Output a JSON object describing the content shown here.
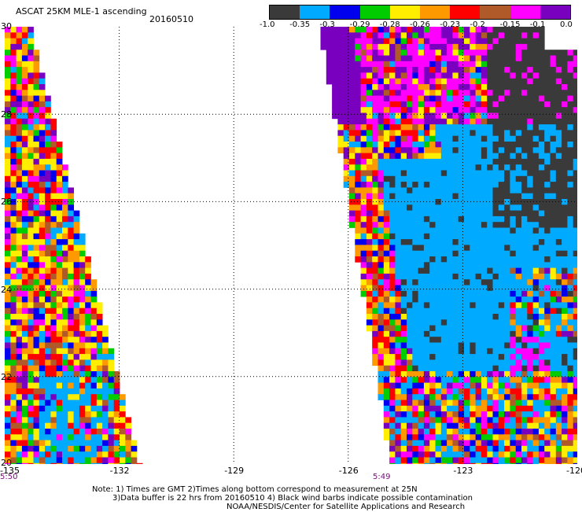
{
  "header": {
    "title": "ASCAT 25KM MLE-1 ascending",
    "date": "20160510"
  },
  "colorbar": {
    "colors": [
      "#3a3a3a",
      "#00aaff",
      "#0000ee",
      "#00cc00",
      "#ffee00",
      "#ff9900",
      "#ff0000",
      "#b05a2a",
      "#ff00ff",
      "#7a00c0"
    ],
    "labels": [
      "-1.0",
      "-0.35",
      "-0.3",
      "-0.29",
      "-0.28",
      "-0.26",
      "-0.23",
      "-0.2",
      "-0.15",
      "-0.1",
      "0.0"
    ]
  },
  "map": {
    "lon_ticks": [
      "-135",
      "-132",
      "-129",
      "-126",
      "-123",
      "-120"
    ],
    "lat_ticks": [
      "30",
      "28",
      "26",
      "24",
      "22",
      "20"
    ],
    "lon_range": [
      -135,
      -120
    ],
    "lat_range": [
      20,
      30
    ],
    "grid": true
  },
  "pass_times": {
    "west": "5:50",
    "east": "5:49"
  },
  "footer": {
    "line1": "Note: 1) Times are GMT 2)Times along bottom correspond to measurement at 25N",
    "line2": "3)Data buffer is 22 hrs from 20160510 4) Black wind barbs indicate possible contamination",
    "line3": "NOAA/NESDIS/Center for Satellite Applications and Research"
  }
}
